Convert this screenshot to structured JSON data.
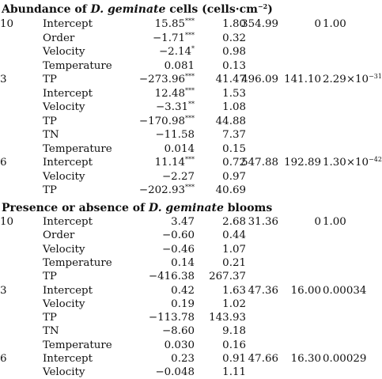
{
  "sections": [
    {
      "title_pre": "Abundance of ",
      "title_italic": "D. geminate",
      "title_post": " cells (cells·cm",
      "title_sup": "−2",
      "title_end": ")",
      "rows": [
        {
          "model": "10",
          "variable": "Intercept",
          "estimate": "15.85",
          "sig": "***",
          "se": "1.80",
          "aic": "354.99",
          "delta_aic": "0",
          "weight": "1.00",
          "weight_exp": ""
        },
        {
          "model": "",
          "variable": "Order",
          "estimate": "−1.71",
          "sig": "***",
          "se": "0.32",
          "aic": "",
          "delta_aic": "",
          "weight": "",
          "weight_exp": ""
        },
        {
          "model": "",
          "variable": "Velocity",
          "estimate": "−2.14",
          "sig": "*",
          "se": "0.98",
          "aic": "",
          "delta_aic": "",
          "weight": "",
          "weight_exp": ""
        },
        {
          "model": "",
          "variable": "Temperature",
          "estimate": "0.081",
          "sig": "",
          "se": "0.13",
          "aic": "",
          "delta_aic": "",
          "weight": "",
          "weight_exp": ""
        },
        {
          "model": "3",
          "variable": "TP",
          "estimate": "−273.96",
          "sig": "***",
          "se": "41.47",
          "aic": "496.09",
          "delta_aic": "141.10",
          "weight": "2.29×10",
          "weight_exp": "−31"
        },
        {
          "model": "",
          "variable": "Intercept",
          "estimate": "12.48",
          "sig": "***",
          "se": "1.53",
          "aic": "",
          "delta_aic": "",
          "weight": "",
          "weight_exp": ""
        },
        {
          "model": "",
          "variable": "Velocity",
          "estimate": "−3.31",
          "sig": "**",
          "se": "1.08",
          "aic": "",
          "delta_aic": "",
          "weight": "",
          "weight_exp": ""
        },
        {
          "model": "",
          "variable": "TP",
          "estimate": "−170.98",
          "sig": "***",
          "se": "44.88",
          "aic": "",
          "delta_aic": "",
          "weight": "",
          "weight_exp": ""
        },
        {
          "model": "",
          "variable": "TN",
          "estimate": "−11.58",
          "sig": "",
          "se": "7.37",
          "aic": "",
          "delta_aic": "",
          "weight": "",
          "weight_exp": ""
        },
        {
          "model": "",
          "variable": "Temperature",
          "estimate": "0.014",
          "sig": "",
          "se": "0.15",
          "aic": "",
          "delta_aic": "",
          "weight": "",
          "weight_exp": ""
        },
        {
          "model": "6",
          "variable": "Intercept",
          "estimate": "11.14",
          "sig": "***",
          "se": "0.72",
          "aic": "547.88",
          "delta_aic": "192.89",
          "weight": "1.30×10",
          "weight_exp": "−42"
        },
        {
          "model": "",
          "variable": "Velocity",
          "estimate": "−2.27",
          "sig": "",
          "se": "0.97",
          "aic": "",
          "delta_aic": "",
          "weight": "",
          "weight_exp": ""
        },
        {
          "model": "",
          "variable": "TP",
          "estimate": "−202.93",
          "sig": "***",
          "se": "40.69",
          "aic": "",
          "delta_aic": "",
          "weight": "",
          "weight_exp": ""
        }
      ]
    },
    {
      "title_pre": "Presence or absence of ",
      "title_italic": "D. geminate",
      "title_post": " blooms",
      "title_sup": "",
      "title_end": "",
      "rows": [
        {
          "model": "10",
          "variable": "Intercept",
          "estimate": "3.47",
          "sig": "",
          "se": "2.68",
          "aic": "31.36",
          "delta_aic": "0",
          "weight": "1.00",
          "weight_exp": ""
        },
        {
          "model": "",
          "variable": "Order",
          "estimate": "−0.60",
          "sig": "",
          "se": "0.44",
          "aic": "",
          "delta_aic": "",
          "weight": "",
          "weight_exp": ""
        },
        {
          "model": "",
          "variable": "Velocity",
          "estimate": "−0.46",
          "sig": "",
          "se": "1.07",
          "aic": "",
          "delta_aic": "",
          "weight": "",
          "weight_exp": ""
        },
        {
          "model": "",
          "variable": "Temperature",
          "estimate": "0.14",
          "sig": "",
          "se": "0.21",
          "aic": "",
          "delta_aic": "",
          "weight": "",
          "weight_exp": ""
        },
        {
          "model": "",
          "variable": "TP",
          "estimate": "−416.38",
          "sig": "",
          "se": "267.37",
          "aic": "",
          "delta_aic": "",
          "weight": "",
          "weight_exp": ""
        },
        {
          "model": "3",
          "variable": "Intercept",
          "estimate": "0.42",
          "sig": "",
          "se": "1.63",
          "aic": "47.36",
          "delta_aic": "16.00",
          "weight": "0.00034",
          "weight_exp": ""
        },
        {
          "model": "",
          "variable": "Velocity",
          "estimate": "0.19",
          "sig": "",
          "se": "1.02",
          "aic": "",
          "delta_aic": "",
          "weight": "",
          "weight_exp": ""
        },
        {
          "model": "",
          "variable": "TP",
          "estimate": "−113.78",
          "sig": "",
          "se": "143.93",
          "aic": "",
          "delta_aic": "",
          "weight": "",
          "weight_exp": ""
        },
        {
          "model": "",
          "variable": "TN",
          "estimate": "−8.60",
          "sig": "",
          "se": "9.18",
          "aic": "",
          "delta_aic": "",
          "weight": "",
          "weight_exp": ""
        },
        {
          "model": "",
          "variable": "Temperature",
          "estimate": "0.030",
          "sig": "",
          "se": "0.16",
          "aic": "",
          "delta_aic": "",
          "weight": "",
          "weight_exp": ""
        },
        {
          "model": "6",
          "variable": "Intercept",
          "estimate": "0.23",
          "sig": "",
          "se": "0.91",
          "aic": "47.66",
          "delta_aic": "16.30",
          "weight": "0.00029",
          "weight_exp": ""
        },
        {
          "model": "",
          "variable": "Velocity",
          "estimate": "−0.048",
          "sig": "",
          "se": "1.11",
          "aic": "",
          "delta_aic": "",
          "weight": "",
          "weight_exp": ""
        }
      ]
    }
  ]
}
